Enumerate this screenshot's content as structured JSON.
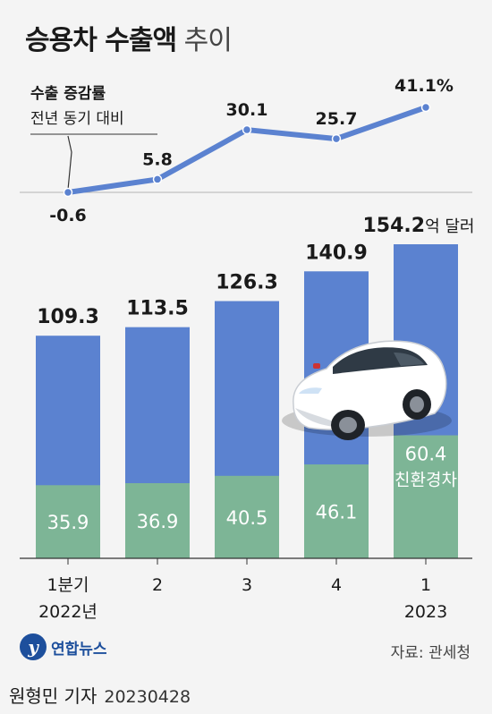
{
  "title": {
    "bold": "승용차 수출액",
    "light": "추이"
  },
  "annotation": {
    "label": "수출 증감률",
    "sub": "전년 동기 대비"
  },
  "colors": {
    "bar_total": "#5b82d0",
    "bar_green": "#7db596",
    "line": "#5b82d0",
    "background": "#f4f4f4"
  },
  "icons": {
    "car": "white-sedan-car-icon",
    "logo": "yonhap-news-logo-icon"
  },
  "chart_data": [
    {
      "type": "line",
      "title": "",
      "categories": [
        "1분기 2022년",
        "2",
        "3",
        "4",
        "1 2023"
      ],
      "series": [
        {
          "name": "수출 증감률",
          "values": [
            -0.6,
            5.8,
            30.1,
            25.7,
            41.1
          ]
        }
      ],
      "point_labels": [
        "-0.6",
        "5.8",
        "30.1",
        "25.7",
        "41.1%"
      ]
    },
    {
      "type": "bar",
      "title": "",
      "categories": [
        "1분기 2022년",
        "2",
        "3",
        "4",
        "1 2023"
      ],
      "series": [
        {
          "name": "",
          "values": [
            109.3,
            113.5,
            126.3,
            140.9,
            154.2
          ]
        },
        {
          "name": "친환경차",
          "values": [
            35.9,
            36.9,
            40.5,
            46.1,
            60.4
          ]
        }
      ],
      "total_labels": [
        "109.3",
        "113.5",
        "126.3",
        "140.9",
        "154.2"
      ],
      "total_unit": "억 달러",
      "green_labels": [
        "35.9",
        "36.9",
        "40.5",
        "46.1",
        "60.4"
      ],
      "green_label_series": "친환경차",
      "x_labels": [
        {
          "line1": "1분기",
          "line2": "2022년"
        },
        {
          "line1": "2",
          "line2": ""
        },
        {
          "line1": "3",
          "line2": ""
        },
        {
          "line1": "4",
          "line2": ""
        },
        {
          "line1": "1",
          "line2": "2023"
        }
      ]
    }
  ],
  "footer": {
    "logo_text": "연합뉴스",
    "source": "자료: 관세청",
    "reporter": "원형민 기자",
    "date": "20230428"
  }
}
